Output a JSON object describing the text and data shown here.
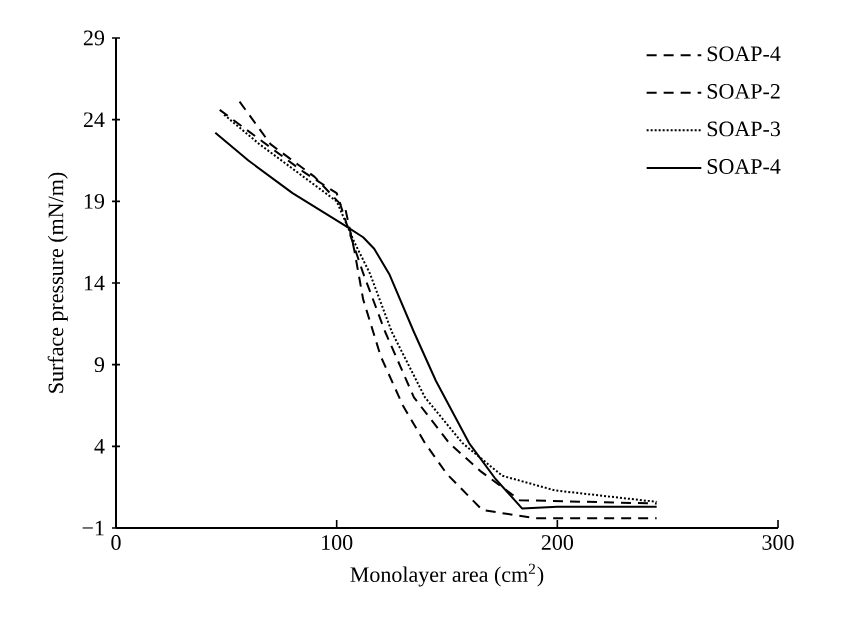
{
  "chart_data": {
    "type": "line",
    "xlabel": "Monolayer area (cm$^{2}$)",
    "ylabel": "Surface pressure (mN/m)",
    "xlim": [
      0,
      300
    ],
    "xticks": [
      0,
      100,
      200,
      300
    ],
    "ylim": [
      -1,
      29
    ],
    "yticks": [
      {
        "value": -1,
        "label": "−1"
      },
      4,
      9,
      14,
      19,
      24,
      29
    ],
    "grid": false,
    "legend": "top right",
    "marker": "none",
    "series": [
      {
        "name": "SOAP-4",
        "color": "#000000",
        "line_style": "dashed",
        "x": [
          56,
          70,
          90,
          104,
          108,
          112,
          120,
          130,
          140,
          150,
          166,
          190,
          245
        ],
        "values": [
          25.1,
          22.5,
          20.5,
          18.5,
          16,
          13,
          9.5,
          6.5,
          4.2,
          2.3,
          0.1,
          -0.4,
          -0.4
        ]
      },
      {
        "name": "SOAP-2",
        "color": "#000000",
        "line_style": "dashed",
        "x": [
          47,
          65,
          85,
          100,
          106,
          112,
          122,
          135,
          151,
          165,
          183,
          245
        ],
        "values": [
          24.6,
          22.8,
          20.8,
          19.5,
          17,
          14.6,
          11,
          7,
          4.2,
          2.5,
          0.7,
          0.5
        ]
      },
      {
        "name": "SOAP-3",
        "color": "#000000",
        "line_style": "dotted",
        "x": [
          49,
          65,
          85,
          100,
          108,
          115,
          125,
          140,
          157,
          175,
          199,
          245
        ],
        "values": [
          24.3,
          22.5,
          20.5,
          19,
          16.5,
          14.6,
          11,
          7,
          4.2,
          2.2,
          1.3,
          0.6
        ]
      },
      {
        "name": "SOAP-4",
        "color": "#000000",
        "line_style": "solid",
        "x": [
          45,
          60,
          80,
          104,
          112,
          117,
          124,
          135,
          145,
          160,
          172,
          184,
          200,
          245
        ],
        "values": [
          23.2,
          21.5,
          19.5,
          17.5,
          16.8,
          16.1,
          14.5,
          11,
          8,
          4.2,
          2,
          0.2,
          0.3,
          0.3
        ]
      }
    ]
  }
}
